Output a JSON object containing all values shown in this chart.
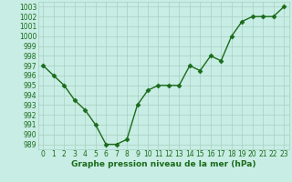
{
  "x": [
    0,
    1,
    2,
    3,
    4,
    5,
    6,
    7,
    8,
    9,
    10,
    11,
    12,
    13,
    14,
    15,
    16,
    17,
    18,
    19,
    20,
    21,
    22,
    23
  ],
  "y": [
    997,
    996,
    995,
    993.5,
    992.5,
    991,
    989,
    989,
    989.5,
    993,
    994.5,
    995,
    995,
    995,
    997,
    996.5,
    998,
    997.5,
    1000,
    1001.5,
    1002,
    1002,
    1002,
    1003
  ],
  "line_color": "#1a6b1a",
  "marker": "D",
  "markersize": 2.5,
  "linewidth": 1.0,
  "bg_color": "#c8ede4",
  "grid_color": "#a8cfc4",
  "xlabel": "Graphe pression niveau de la mer (hPa)",
  "xlabel_fontsize": 6.5,
  "xlabel_color": "#1a6b1a",
  "ytick_labels": [
    "989",
    "990",
    "991",
    "992",
    "993",
    "994",
    "995",
    "996",
    "997",
    "998",
    "999",
    "1000",
    "1001",
    "1002",
    "1003"
  ],
  "ytick_values": [
    989,
    990,
    991,
    992,
    993,
    994,
    995,
    996,
    997,
    998,
    999,
    1000,
    1001,
    1002,
    1003
  ],
  "ylim": [
    988.5,
    1003.5
  ],
  "xlim": [
    -0.5,
    23.5
  ],
  "tick_fontsize": 5.5,
  "tick_color": "#1a6b1a"
}
